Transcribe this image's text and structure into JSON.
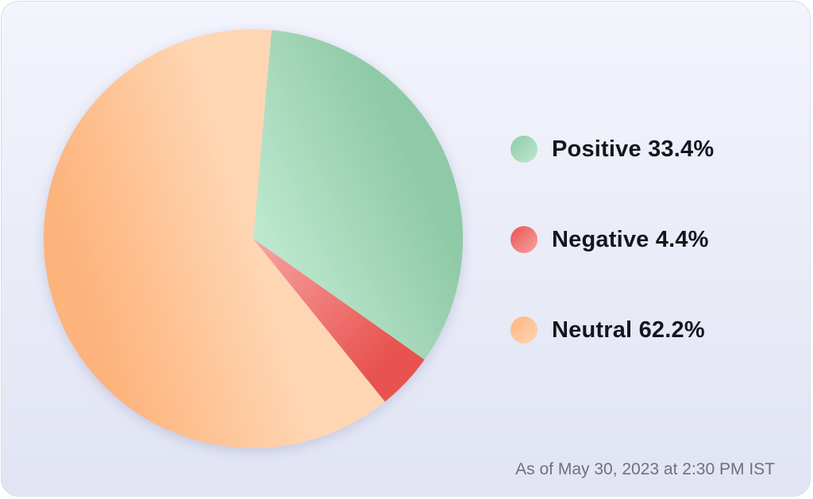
{
  "chart_data": {
    "type": "pie",
    "slices": [
      {
        "label": "Positive",
        "value": 33.4,
        "display": "Positive 33.4%",
        "color": "#8fcaa6",
        "color_light": "#bfe9d0"
      },
      {
        "label": "Negative",
        "value": 4.4,
        "display": "Negative 4.4%",
        "color": "#e8534f",
        "color_light": "#f8a4a4"
      },
      {
        "label": "Neutral",
        "value": 62.2,
        "display": "Neutral 62.2%",
        "color": "#fdb37c",
        "color_light": "#ffd6b3"
      }
    ],
    "legend_position": "right",
    "title": ""
  },
  "footer": {
    "timestamp": "As of May 30, 2023 at 2:30 PM IST"
  }
}
